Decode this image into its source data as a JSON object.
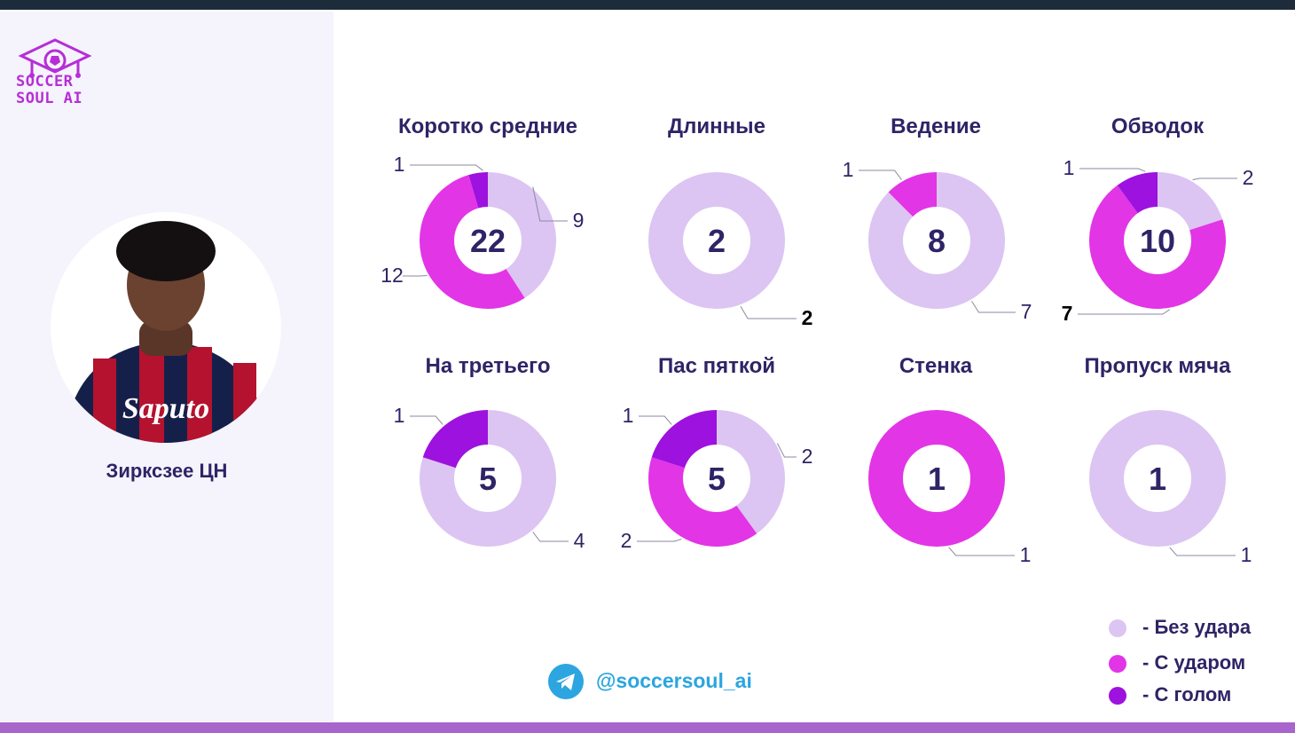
{
  "brand": {
    "line1": "SOCCER",
    "line2": "SOUL AI",
    "accent": "#b52fd6"
  },
  "player": {
    "name": "Зирксзее ЦН",
    "shirt_sponsor": "Saputo"
  },
  "social": {
    "handle": "@soccersoul_ai",
    "icon": "telegram-icon",
    "color": "#2ca5e0"
  },
  "legend": [
    {
      "label": "- Без удара",
      "color": "#dcc5f2"
    },
    {
      "label": "- С ударом",
      "color": "#e235e6"
    },
    {
      "label": "- С голом",
      "color": "#9d12de"
    }
  ],
  "chart_data": [
    {
      "type": "donut",
      "title": "Коротко средние",
      "total": "22",
      "values": [
        9,
        12,
        1
      ]
    },
    {
      "type": "donut",
      "title": "Длинные",
      "total": "2",
      "values": [
        2,
        0,
        0
      ]
    },
    {
      "type": "donut",
      "title": "Ведение",
      "total": "8",
      "values": [
        7,
        1,
        0
      ]
    },
    {
      "type": "donut",
      "title": "Обводок",
      "total": "10",
      "values": [
        2,
        7,
        1
      ]
    },
    {
      "type": "donut",
      "title": "На третьего",
      "total": "5",
      "values": [
        4,
        0,
        1
      ]
    },
    {
      "type": "donut",
      "title": "Пас пяткой",
      "total": "5",
      "values": [
        2,
        2,
        1
      ]
    },
    {
      "type": "donut",
      "title": "Стенка",
      "total": "1",
      "values": [
        0,
        1,
        0
      ]
    },
    {
      "type": "donut",
      "title": "Пропуск мяча",
      "total": "1",
      "values": [
        1,
        0,
        0
      ]
    }
  ]
}
